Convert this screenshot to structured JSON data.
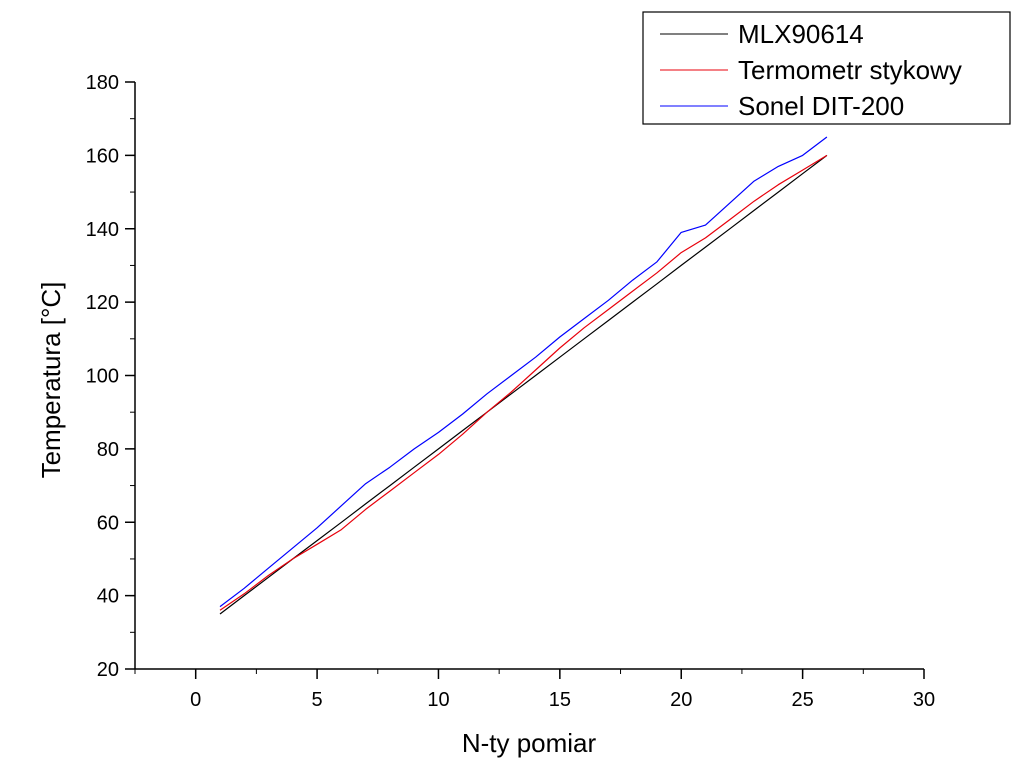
{
  "chart_data": {
    "type": "line",
    "xlabel": "N-ty pomiar",
    "ylabel": "Temperatura [°C]",
    "xlim": [
      -2.5,
      30
    ],
    "ylim": [
      20,
      180
    ],
    "x_ticks": [
      0,
      5,
      10,
      15,
      20,
      25,
      30
    ],
    "y_ticks": [
      20,
      40,
      60,
      80,
      100,
      120,
      140,
      160,
      180
    ],
    "x_minor_step": 2.5,
    "y_minor_step": 10,
    "legend_position": "top-right",
    "x": [
      1,
      2,
      3,
      4,
      5,
      6,
      7,
      8,
      9,
      10,
      11,
      12,
      13,
      14,
      15,
      16,
      17,
      18,
      19,
      20,
      21,
      22,
      23,
      24,
      25,
      26
    ],
    "series": [
      {
        "name": "MLX90614",
        "color": "#000000",
        "values": [
          35,
          40,
          45,
          50,
          55,
          60,
          65,
          70,
          75,
          80,
          85,
          90,
          95,
          100,
          105,
          110,
          115,
          120,
          125,
          130,
          135,
          140,
          145,
          150,
          155,
          160
        ]
      },
      {
        "name": "Termometr stykowy",
        "color": "#e8000b",
        "values": [
          36,
          40.5,
          45.5,
          50,
          54,
          58,
          63.5,
          68.5,
          73.5,
          78.5,
          84,
          90,
          95.5,
          101.5,
          107.5,
          113,
          118,
          123,
          128,
          133.5,
          137.5,
          142.5,
          147.5,
          152,
          156,
          160
        ]
      },
      {
        "name": "Sonel DIT-200",
        "color": "#0000ff",
        "values": [
          37,
          42,
          47.5,
          53,
          58.5,
          64.5,
          70.5,
          75,
          80,
          84.5,
          89.5,
          95,
          100,
          105,
          110.5,
          115.5,
          120.5,
          126,
          131,
          139,
          141,
          147,
          153,
          157,
          160,
          165
        ]
      }
    ]
  }
}
